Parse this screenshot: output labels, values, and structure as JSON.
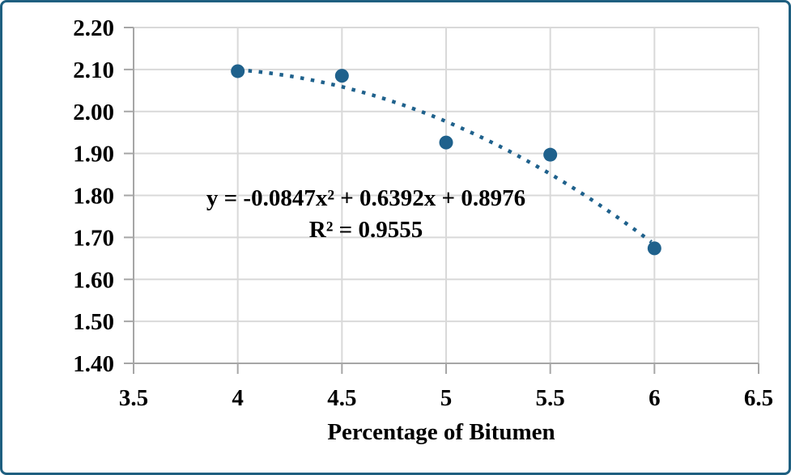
{
  "chart_data": {
    "type": "scatter",
    "title": "",
    "xlabel": "Percentage of Bitumen",
    "ylabel": "",
    "x": [
      4,
      4.5,
      5,
      5.5,
      6
    ],
    "y": [
      2.096,
      2.085,
      1.926,
      1.897,
      1.674
    ],
    "xlim": [
      3.5,
      6.5
    ],
    "ylim": [
      1.4,
      2.2
    ],
    "x_ticks": [
      "3.5",
      "4",
      "4.5",
      "5",
      "5.5",
      "6",
      "6.5"
    ],
    "x_tick_values": [
      3.5,
      4,
      4.5,
      5,
      5.5,
      6,
      6.5
    ],
    "y_ticks": [
      "2.20",
      "2.10",
      "2.00",
      "1.90",
      "1.80",
      "1.70",
      "1.60",
      "1.50",
      "1.40"
    ],
    "y_tick_values": [
      2.2,
      2.1,
      2.0,
      1.9,
      1.8,
      1.7,
      1.6,
      1.5,
      1.4
    ],
    "grid": true,
    "legend": "none",
    "trendline": {
      "type": "polynomial",
      "order": 2,
      "coefficients": [
        -0.0847,
        0.6392,
        0.8976
      ],
      "equation_label": "y = -0.0847x² + 0.6392x + 0.8976",
      "r_squared_label": "R² = 0.9555",
      "x_range": [
        4.0,
        5.985
      ],
      "style": "dotted"
    },
    "colors": {
      "marker": "#1F618C",
      "trendline": "#1F618C",
      "gridline": "#D9D9D9",
      "axis": "#A6A6A6",
      "border": "#1E5F80",
      "text": "#000000"
    }
  }
}
